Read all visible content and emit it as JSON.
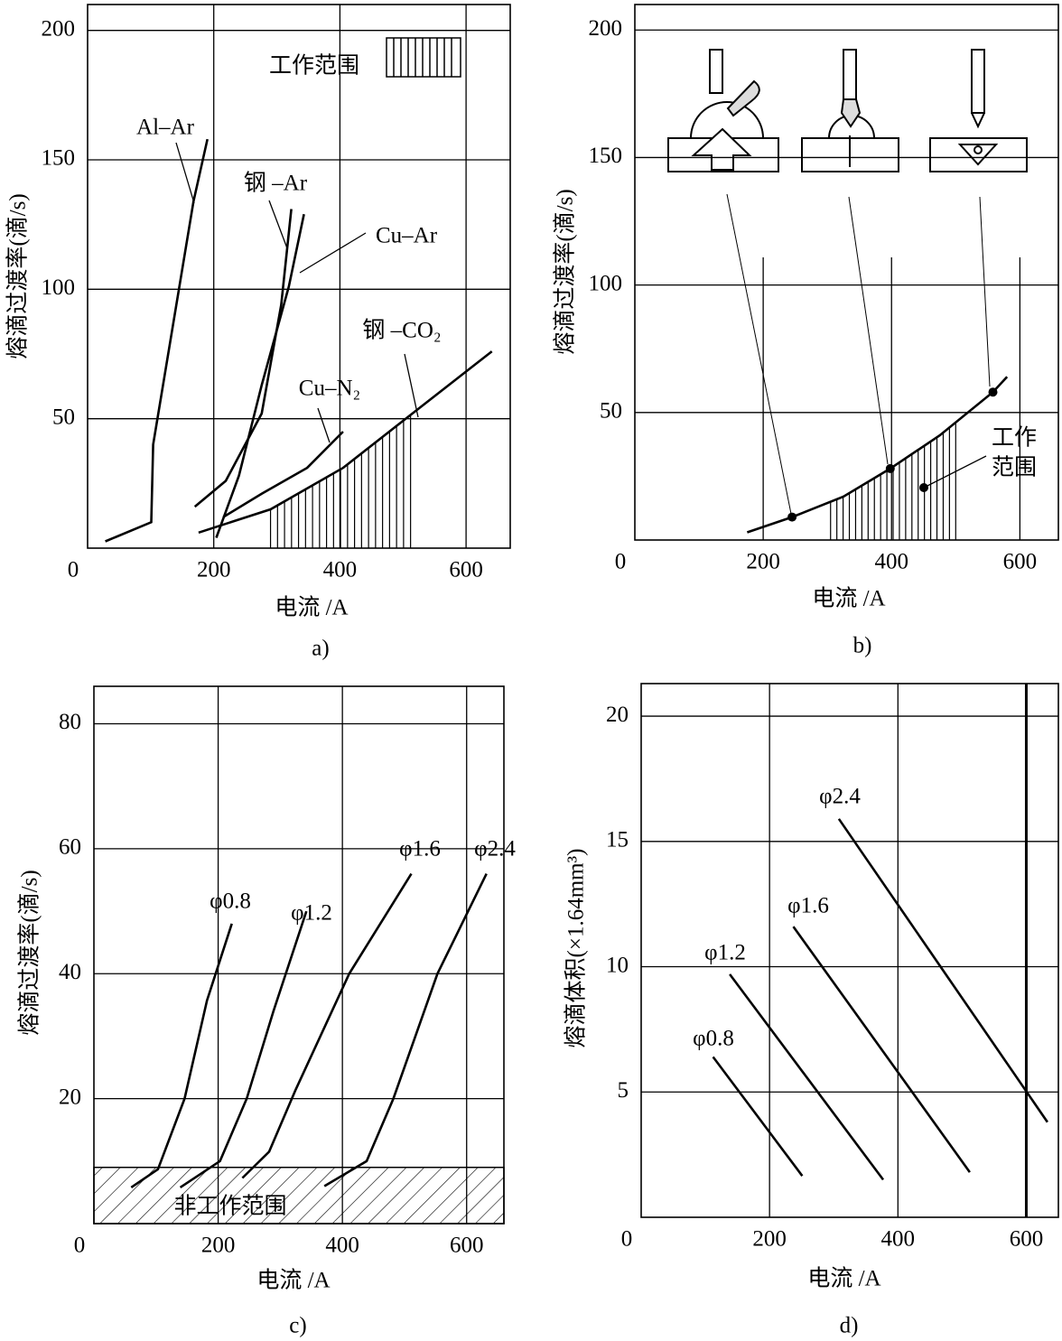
{
  "chart_data": [
    {
      "type": "line",
      "caption": "a)",
      "xlabel": "电流 /A",
      "ylabel": "熔滴过渡率(滴/s)",
      "color": "#000000",
      "grid": true,
      "xlim": [
        0,
        670
      ],
      "ylim": [
        0,
        210
      ],
      "xticks": [
        0,
        200,
        400,
        600
      ],
      "yticks": [
        50,
        100,
        150,
        200
      ],
      "series": [
        {
          "name": "Al–Ar",
          "x": [
            28,
            101,
            104,
            168,
            190
          ],
          "values": [
            2.6,
            10,
            40,
            134,
            158
          ]
        },
        {
          "name": "钢 –Ar",
          "x": [
            170,
            219,
            276,
            307,
            323
          ],
          "values": [
            16,
            26,
            52,
            94,
            131
          ]
        },
        {
          "name": "Cu–Ar",
          "x": [
            204,
            240,
            276,
            319,
            343
          ],
          "values": [
            4,
            28,
            63,
            101,
            129
          ]
        },
        {
          "name": "Cu–N₂",
          "x": [
            215,
            276,
            348,
            405
          ],
          "values": [
            12,
            21,
            31,
            45
          ]
        },
        {
          "name": "钢 –CO₂",
          "x": [
            176,
            290,
            405,
            520,
            641
          ],
          "values": [
            6,
            15,
            31,
            53,
            76
          ]
        }
      ],
      "working_range_label": "工作范围",
      "working_range_x": [
        290,
        512
      ]
    },
    {
      "type": "line",
      "caption": "b)",
      "xlabel": "电流 /A",
      "ylabel": "熔滴过渡率(滴/s)",
      "color": "#000000",
      "grid": true,
      "xlim": [
        0,
        660
      ],
      "ylim": [
        0,
        210
      ],
      "xticks": [
        0,
        200,
        400,
        600
      ],
      "yticks": [
        50,
        100,
        150,
        200
      ],
      "series": [
        {
          "x": [
            175,
            245,
            325,
            398,
            475,
            558,
            580
          ],
          "values": [
            3,
            9,
            17,
            28,
            41,
            58,
            64
          ]
        }
      ],
      "markers": {
        "x": [
          245,
          398,
          558
        ],
        "values": [
          9,
          28,
          58
        ]
      },
      "working_range_label": [
        "工作",
        "范围"
      ],
      "working_range_x": [
        305,
        500
      ]
    },
    {
      "type": "line",
      "caption": "c)",
      "xlabel": "电流 /A",
      "ylabel": "熔滴过渡率(滴/s)",
      "color": "#000000",
      "grid": true,
      "xlim": [
        0,
        660
      ],
      "ylim": [
        0,
        86
      ],
      "xticks": [
        0,
        200,
        400,
        600
      ],
      "yticks": [
        20,
        40,
        60,
        80
      ],
      "series": [
        {
          "name": "φ0.8",
          "x": [
            60,
            103,
            146,
            182,
            222
          ],
          "values": [
            5.8,
            8.7,
            20,
            35.7,
            48
          ]
        },
        {
          "name": "φ1.2",
          "x": [
            139,
            203,
            246,
            289,
            342
          ],
          "values": [
            5.8,
            10,
            20,
            34,
            50
          ]
        },
        {
          "name": "φ1.6",
          "x": [
            239,
            282,
            325,
            411,
            511
          ],
          "values": [
            7.3,
            11.5,
            21.5,
            40,
            56
          ]
        },
        {
          "name": "φ2.4",
          "x": [
            371,
            439,
            482,
            553,
            632
          ],
          "values": [
            6,
            10,
            20,
            40,
            56
          ]
        }
      ],
      "nonworking_label": "非工作范围",
      "nonworking_max": 9
    },
    {
      "type": "line",
      "caption": "d)",
      "xlabel": "电流 /A",
      "ylabel": "熔滴体积(×1.64mm³)",
      "color": "#000000",
      "grid": true,
      "xlim": [
        0,
        650
      ],
      "ylim": [
        0,
        21.3
      ],
      "xticks": [
        0,
        200,
        400,
        600
      ],
      "yticks": [
        5,
        10,
        15,
        20
      ],
      "series": [
        {
          "name": "φ0.8",
          "x": [
            112,
            251
          ],
          "values": [
            6.4,
            1.65
          ]
        },
        {
          "name": "φ1.2",
          "x": [
            138,
            377
          ],
          "values": [
            9.7,
            1.5
          ]
        },
        {
          "name": "φ1.6",
          "x": [
            237,
            512
          ],
          "values": [
            11.6,
            1.8
          ]
        },
        {
          "name": "φ2.4",
          "x": [
            308,
            633
          ],
          "values": [
            15.9,
            3.8
          ]
        }
      ]
    }
  ]
}
